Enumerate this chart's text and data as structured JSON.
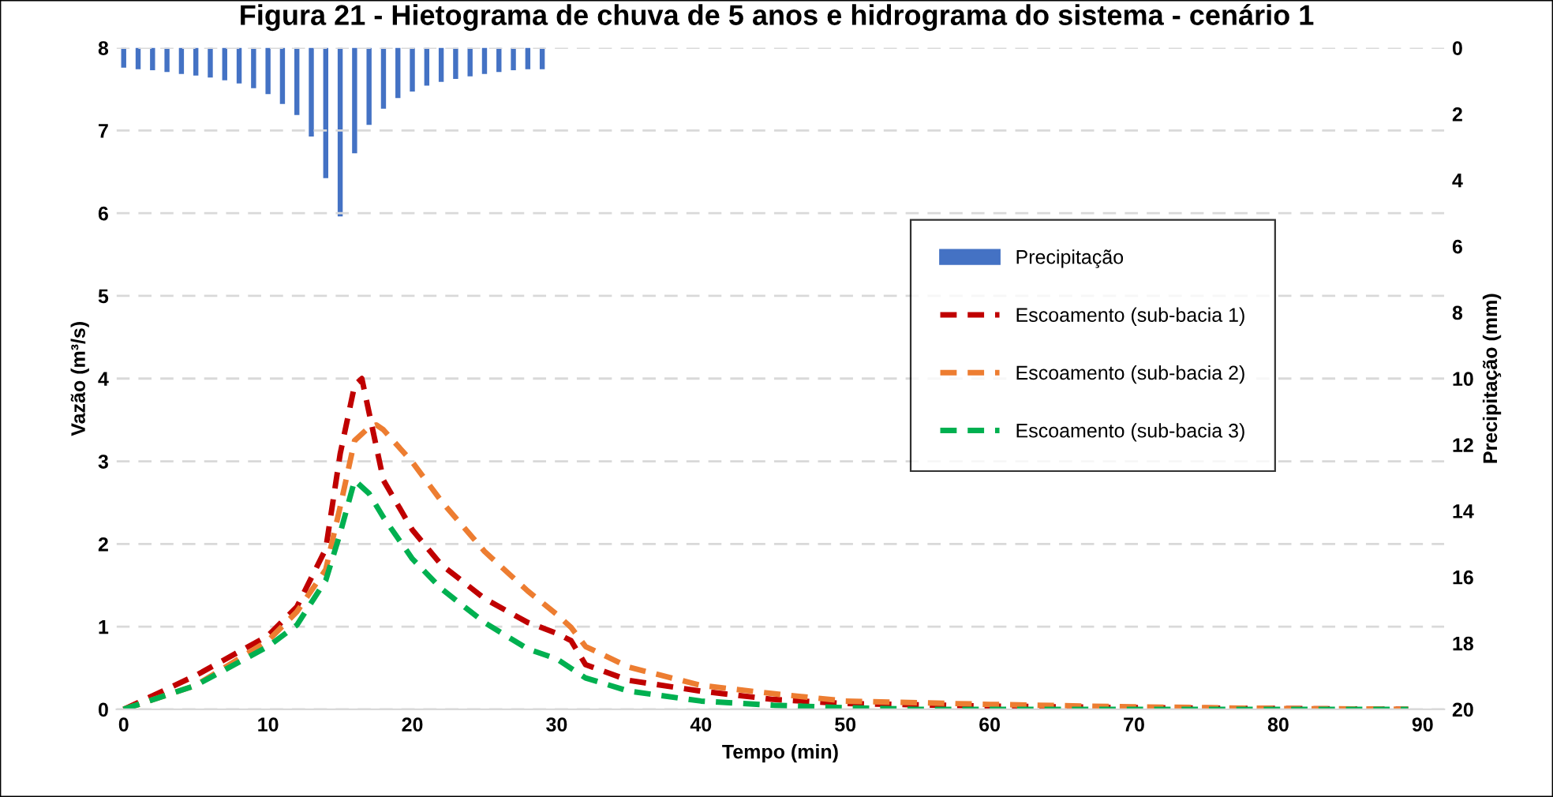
{
  "chart_data": {
    "type": "line",
    "title": "Figura 21 - Hietograma de chuva de 5 anos e hidrograma do sistema - cenário 1",
    "xlabel": "Tempo (min)",
    "ylabel": "Vazão (m³/s)",
    "y2label": "Precipitação (mm)",
    "xlim": [
      -0.5,
      91.5
    ],
    "xticks": [
      0,
      10,
      20,
      30,
      40,
      50,
      60,
      70,
      80,
      90
    ],
    "ylim": [
      0,
      8
    ],
    "yticks": [
      0,
      1,
      2,
      3,
      4,
      5,
      6,
      7,
      8
    ],
    "y2lim": [
      20,
      0
    ],
    "y2ticks": [
      0,
      2,
      4,
      6,
      8,
      10,
      12,
      14,
      16,
      18,
      20
    ],
    "grid": "y",
    "legend": "center right",
    "line_style": "dashed",
    "series": [
      {
        "name": "Precipitação",
        "type": "bar",
        "axis": "y2",
        "color": "#4472c4",
        "x": [
          0,
          1,
          2,
          3,
          4,
          5,
          6,
          7,
          8,
          9,
          10,
          11,
          12,
          13,
          14,
          15,
          16,
          17,
          18,
          19,
          20,
          21,
          22,
          23,
          24,
          25,
          26,
          27,
          28,
          29
        ],
        "values": [
          0.6,
          0.65,
          0.68,
          0.73,
          0.79,
          0.84,
          0.9,
          0.98,
          1.08,
          1.22,
          1.4,
          1.7,
          2.03,
          2.68,
          3.94,
          5.1,
          3.19,
          2.33,
          1.84,
          1.52,
          1.32,
          1.14,
          1.03,
          0.94,
          0.86,
          0.79,
          0.73,
          0.68,
          0.65,
          0.65
        ]
      },
      {
        "name": "Escoamento (sub-bacia 1)",
        "color": "#c00000",
        "x": [
          0,
          5,
          10,
          12,
          14,
          15,
          16,
          16.5,
          18,
          20,
          22,
          25,
          28,
          30,
          31,
          32,
          35,
          40,
          45,
          50,
          60,
          70,
          80,
          89
        ],
        "values": [
          0,
          0.41,
          0.89,
          1.24,
          1.94,
          3.09,
          3.92,
          4.0,
          2.77,
          2.17,
          1.75,
          1.34,
          1.05,
          0.92,
          0.83,
          0.54,
          0.35,
          0.22,
          0.12,
          0.07,
          0.04,
          0.02,
          0.01,
          0
        ]
      },
      {
        "name": "Escoamento (sub-bacia 2)",
        "color": "#ed7d31",
        "x": [
          0,
          5,
          10,
          12,
          14,
          15,
          16,
          17,
          17.5,
          18,
          20,
          22,
          25,
          28,
          30,
          31,
          32,
          35,
          40,
          45,
          50,
          60,
          70,
          80,
          89
        ],
        "values": [
          0,
          0.29,
          0.83,
          1.18,
          1.69,
          2.45,
          3.25,
          3.41,
          3.44,
          3.38,
          2.99,
          2.52,
          1.91,
          1.43,
          1.15,
          0.99,
          0.76,
          0.51,
          0.29,
          0.19,
          0.1,
          0.06,
          0.03,
          0.01,
          0
        ]
      },
      {
        "name": "Escoamento (sub-bacia 3)",
        "color": "#00b050",
        "x": [
          0,
          5,
          10,
          12,
          14,
          15,
          16,
          17,
          18,
          20,
          22,
          25,
          28,
          30,
          32,
          35,
          40,
          45,
          50,
          55,
          70,
          89
        ],
        "values": [
          0,
          0.29,
          0.76,
          1.02,
          1.56,
          2.13,
          2.77,
          2.61,
          2.32,
          1.82,
          1.46,
          1.05,
          0.73,
          0.61,
          0.38,
          0.22,
          0.1,
          0.05,
          0.02,
          0,
          0,
          0
        ]
      }
    ]
  }
}
